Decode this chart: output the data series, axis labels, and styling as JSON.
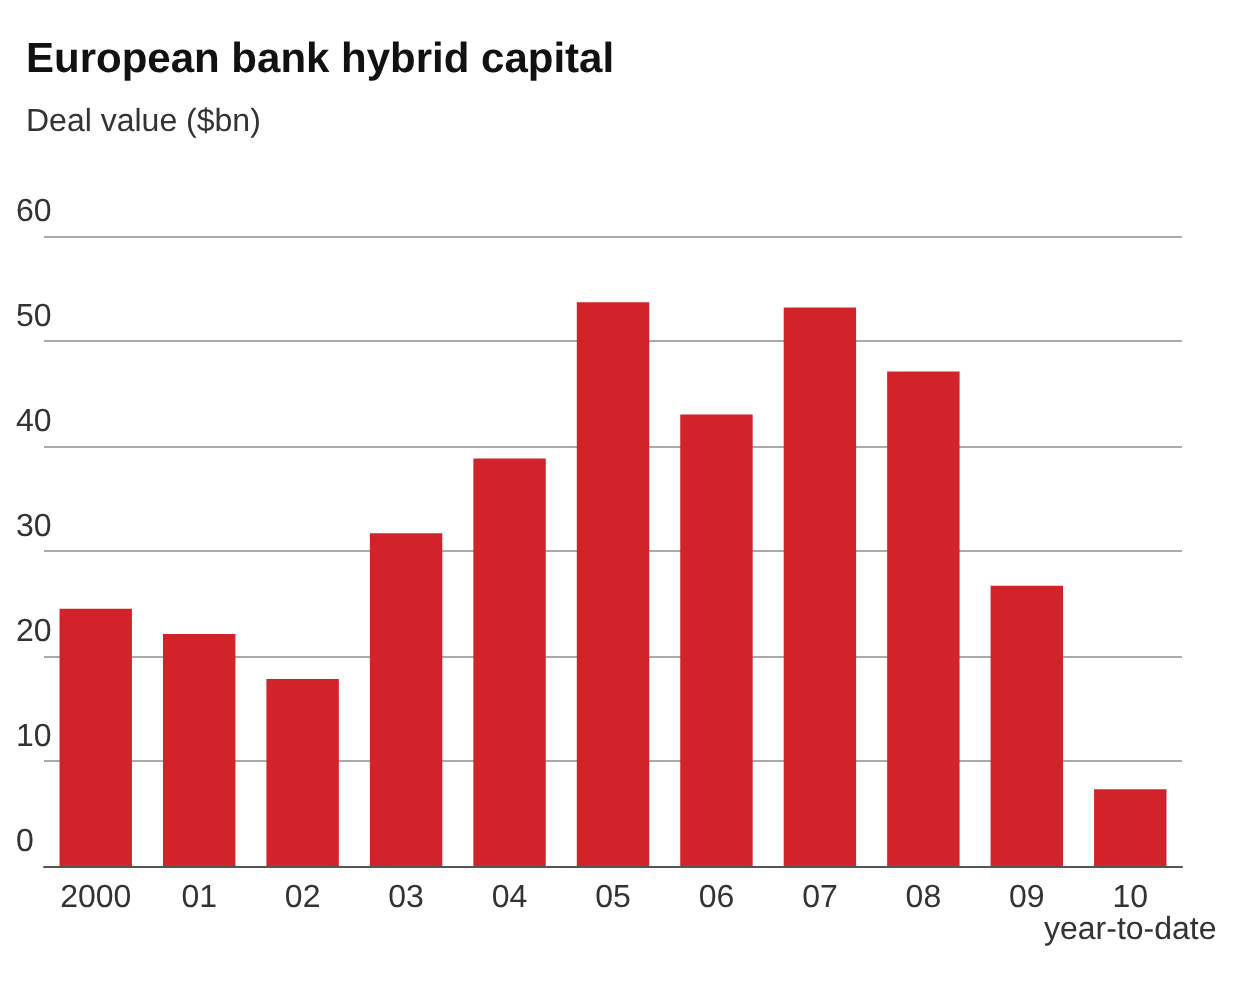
{
  "chart_data": {
    "type": "bar",
    "title": "European bank hybrid capital",
    "subtitle": "Deal value ($bn)",
    "categories": [
      "2000",
      "01",
      "02",
      "03",
      "04",
      "05",
      "06",
      "07",
      "08",
      "09",
      "10\nyear-to-date"
    ],
    "values": [
      24.5,
      22.1,
      17.8,
      31.7,
      38.8,
      53.7,
      43.0,
      53.2,
      47.1,
      26.7,
      7.3
    ],
    "color": "#d2232a",
    "ylim": [
      0,
      60
    ],
    "yticks": [
      0,
      10,
      20,
      30,
      40,
      50,
      60
    ],
    "grid": "y"
  }
}
